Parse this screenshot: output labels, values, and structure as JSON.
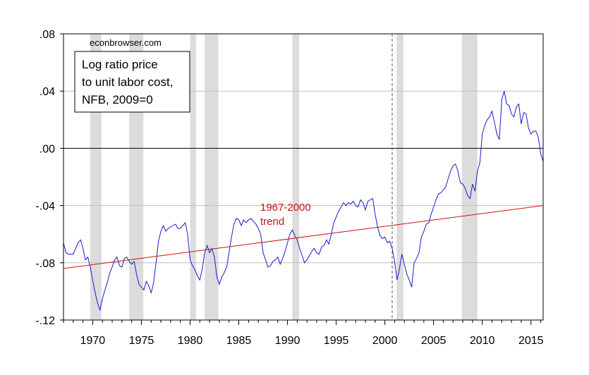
{
  "chart_data": {
    "type": "line",
    "source": "econbrowser.com",
    "legend_lines": [
      "Log ratio price",
      "to unit labor cost,",
      "NFB, 2009=0"
    ],
    "annotation": {
      "lines": [
        "1967-2000",
        "trend"
      ],
      "color": "#cc1111"
    },
    "xlim": [
      1967,
      2016.25
    ],
    "ylim": [
      -0.12,
      0.08
    ],
    "x_ticks": [
      1970,
      1975,
      1980,
      1985,
      1990,
      1995,
      2000,
      2005,
      2010,
      2015
    ],
    "y_ticks": [
      {
        "value": 0.08,
        "label": ".08"
      },
      {
        "value": 0.04,
        "label": ".04"
      },
      {
        "value": 0.0,
        "label": ".00"
      },
      {
        "value": -0.04,
        "label": "-.04"
      },
      {
        "value": -0.08,
        "label": "-.08"
      },
      {
        "value": -0.12,
        "label": "-.12"
      }
    ],
    "grid": true,
    "zero_line": 0,
    "vline_x": 2000.75,
    "recessions": [
      [
        1969.75,
        1970.9
      ],
      [
        1973.75,
        1975.2
      ],
      [
        1980.0,
        1980.6
      ],
      [
        1981.5,
        1982.9
      ],
      [
        1990.5,
        1991.2
      ],
      [
        2001.2,
        2001.9
      ],
      [
        2007.9,
        2009.5
      ]
    ],
    "series": [
      {
        "color": "#1a1acc",
        "points": [
          [
            1967.0,
            -0.066
          ],
          [
            1967.25,
            -0.073
          ],
          [
            1967.5,
            -0.074
          ],
          [
            1967.75,
            -0.074
          ],
          [
            1968.0,
            -0.074
          ],
          [
            1968.25,
            -0.07
          ],
          [
            1968.5,
            -0.066
          ],
          [
            1968.75,
            -0.064
          ],
          [
            1969.0,
            -0.07
          ],
          [
            1969.25,
            -0.078
          ],
          [
            1969.5,
            -0.076
          ],
          [
            1969.75,
            -0.083
          ],
          [
            1970.0,
            -0.092
          ],
          [
            1970.25,
            -0.101
          ],
          [
            1970.5,
            -0.108
          ],
          [
            1970.75,
            -0.113
          ],
          [
            1971.0,
            -0.105
          ],
          [
            1971.25,
            -0.099
          ],
          [
            1971.5,
            -0.094
          ],
          [
            1971.75,
            -0.087
          ],
          [
            1972.0,
            -0.083
          ],
          [
            1972.25,
            -0.078
          ],
          [
            1972.5,
            -0.076
          ],
          [
            1972.75,
            -0.082
          ],
          [
            1973.0,
            -0.083
          ],
          [
            1973.25,
            -0.077
          ],
          [
            1973.5,
            -0.076
          ],
          [
            1973.75,
            -0.079
          ],
          [
            1974.0,
            -0.081
          ],
          [
            1974.25,
            -0.079
          ],
          [
            1974.5,
            -0.088
          ],
          [
            1974.75,
            -0.095
          ],
          [
            1975.0,
            -0.097
          ],
          [
            1975.25,
            -0.099
          ],
          [
            1975.5,
            -0.093
          ],
          [
            1975.75,
            -0.096
          ],
          [
            1976.0,
            -0.101
          ],
          [
            1976.25,
            -0.094
          ],
          [
            1976.5,
            -0.08
          ],
          [
            1976.75,
            -0.065
          ],
          [
            1977.0,
            -0.058
          ],
          [
            1977.25,
            -0.054
          ],
          [
            1977.5,
            -0.058
          ],
          [
            1977.75,
            -0.056
          ],
          [
            1978.0,
            -0.055
          ],
          [
            1978.25,
            -0.054
          ],
          [
            1978.5,
            -0.053
          ],
          [
            1978.75,
            -0.056
          ],
          [
            1979.0,
            -0.056
          ],
          [
            1979.25,
            -0.054
          ],
          [
            1979.5,
            -0.052
          ],
          [
            1979.75,
            -0.06
          ],
          [
            1980.0,
            -0.078
          ],
          [
            1980.25,
            -0.082
          ],
          [
            1980.5,
            -0.085
          ],
          [
            1980.75,
            -0.089
          ],
          [
            1981.0,
            -0.092
          ],
          [
            1981.25,
            -0.084
          ],
          [
            1981.5,
            -0.073
          ],
          [
            1981.75,
            -0.068
          ],
          [
            1982.0,
            -0.073
          ],
          [
            1982.25,
            -0.07
          ],
          [
            1982.5,
            -0.076
          ],
          [
            1982.75,
            -0.09
          ],
          [
            1983.0,
            -0.095
          ],
          [
            1983.25,
            -0.09
          ],
          [
            1983.5,
            -0.087
          ],
          [
            1983.75,
            -0.083
          ],
          [
            1984.0,
            -0.073
          ],
          [
            1984.25,
            -0.062
          ],
          [
            1984.5,
            -0.053
          ],
          [
            1984.75,
            -0.049
          ],
          [
            1985.0,
            -0.05
          ],
          [
            1985.25,
            -0.054
          ],
          [
            1985.5,
            -0.05
          ],
          [
            1985.75,
            -0.052
          ],
          [
            1986.0,
            -0.05
          ],
          [
            1986.25,
            -0.049
          ],
          [
            1986.5,
            -0.051
          ],
          [
            1986.75,
            -0.053
          ],
          [
            1987.0,
            -0.056
          ],
          [
            1987.25,
            -0.06
          ],
          [
            1987.5,
            -0.073
          ],
          [
            1987.75,
            -0.078
          ],
          [
            1988.0,
            -0.083
          ],
          [
            1988.25,
            -0.082
          ],
          [
            1988.5,
            -0.079
          ],
          [
            1988.75,
            -0.078
          ],
          [
            1989.0,
            -0.076
          ],
          [
            1989.25,
            -0.081
          ],
          [
            1989.5,
            -0.077
          ],
          [
            1989.75,
            -0.072
          ],
          [
            1990.0,
            -0.066
          ],
          [
            1990.25,
            -0.06
          ],
          [
            1990.5,
            -0.057
          ],
          [
            1990.75,
            -0.061
          ],
          [
            1991.0,
            -0.064
          ],
          [
            1991.25,
            -0.07
          ],
          [
            1991.5,
            -0.075
          ],
          [
            1991.75,
            -0.08
          ],
          [
            1992.0,
            -0.078
          ],
          [
            1992.25,
            -0.075
          ],
          [
            1992.5,
            -0.072
          ],
          [
            1992.75,
            -0.07
          ],
          [
            1993.0,
            -0.073
          ],
          [
            1993.25,
            -0.074
          ],
          [
            1993.5,
            -0.069
          ],
          [
            1993.75,
            -0.068
          ],
          [
            1994.0,
            -0.064
          ],
          [
            1994.25,
            -0.067
          ],
          [
            1994.5,
            -0.06
          ],
          [
            1994.75,
            -0.052
          ],
          [
            1995.0,
            -0.048
          ],
          [
            1995.25,
            -0.044
          ],
          [
            1995.5,
            -0.041
          ],
          [
            1995.75,
            -0.038
          ],
          [
            1996.0,
            -0.04
          ],
          [
            1996.25,
            -0.038
          ],
          [
            1996.5,
            -0.039
          ],
          [
            1996.75,
            -0.037
          ],
          [
            1997.0,
            -0.04
          ],
          [
            1997.25,
            -0.041
          ],
          [
            1997.5,
            -0.036
          ],
          [
            1997.75,
            -0.038
          ],
          [
            1998.0,
            -0.043
          ],
          [
            1998.25,
            -0.037
          ],
          [
            1998.5,
            -0.036
          ],
          [
            1998.75,
            -0.035
          ],
          [
            1999.0,
            -0.046
          ],
          [
            1999.25,
            -0.055
          ],
          [
            1999.5,
            -0.061
          ],
          [
            1999.75,
            -0.063
          ],
          [
            2000.0,
            -0.062
          ],
          [
            2000.25,
            -0.066
          ],
          [
            2000.5,
            -0.065
          ],
          [
            2000.75,
            -0.07
          ],
          [
            2001.0,
            -0.079
          ],
          [
            2001.25,
            -0.092
          ],
          [
            2001.5,
            -0.084
          ],
          [
            2001.75,
            -0.074
          ],
          [
            2002.0,
            -0.081
          ],
          [
            2002.25,
            -0.088
          ],
          [
            2002.5,
            -0.092
          ],
          [
            2002.75,
            -0.097
          ],
          [
            2003.0,
            -0.08
          ],
          [
            2003.25,
            -0.077
          ],
          [
            2003.5,
            -0.073
          ],
          [
            2003.75,
            -0.062
          ],
          [
            2004.0,
            -0.058
          ],
          [
            2004.25,
            -0.053
          ],
          [
            2004.5,
            -0.052
          ],
          [
            2004.75,
            -0.046
          ],
          [
            2005.0,
            -0.041
          ],
          [
            2005.25,
            -0.036
          ],
          [
            2005.5,
            -0.032
          ],
          [
            2005.75,
            -0.031
          ],
          [
            2006.0,
            -0.029
          ],
          [
            2006.25,
            -0.027
          ],
          [
            2006.5,
            -0.021
          ],
          [
            2006.75,
            -0.016
          ],
          [
            2007.0,
            -0.012
          ],
          [
            2007.25,
            -0.011
          ],
          [
            2007.5,
            -0.016
          ],
          [
            2007.75,
            -0.024
          ],
          [
            2008.0,
            -0.025
          ],
          [
            2008.25,
            -0.028
          ],
          [
            2008.5,
            -0.033
          ],
          [
            2008.75,
            -0.035
          ],
          [
            2009.0,
            -0.025
          ],
          [
            2009.25,
            -0.03
          ],
          [
            2009.5,
            -0.016
          ],
          [
            2009.75,
            -0.01
          ],
          [
            2010.0,
            0.01
          ],
          [
            2010.25,
            0.016
          ],
          [
            2010.5,
            0.02
          ],
          [
            2010.75,
            0.022
          ],
          [
            2011.0,
            0.026
          ],
          [
            2011.25,
            0.018
          ],
          [
            2011.5,
            0.01
          ],
          [
            2011.75,
            0.006
          ],
          [
            2012.0,
            0.034
          ],
          [
            2012.25,
            0.04
          ],
          [
            2012.5,
            0.031
          ],
          [
            2012.75,
            0.03
          ],
          [
            2013.0,
            0.024
          ],
          [
            2013.25,
            0.022
          ],
          [
            2013.5,
            0.029
          ],
          [
            2013.75,
            0.031
          ],
          [
            2014.0,
            0.017
          ],
          [
            2014.25,
            0.025
          ],
          [
            2014.5,
            0.024
          ],
          [
            2014.75,
            0.014
          ],
          [
            2015.0,
            0.01
          ],
          [
            2015.25,
            0.012
          ],
          [
            2015.5,
            0.012
          ],
          [
            2015.75,
            0.008
          ],
          [
            2016.0,
            -0.004
          ],
          [
            2016.25,
            -0.009
          ]
        ]
      },
      {
        "color": "#cc1111",
        "points": [
          [
            1967.0,
            -0.084
          ],
          [
            2016.25,
            -0.04
          ]
        ]
      }
    ]
  }
}
